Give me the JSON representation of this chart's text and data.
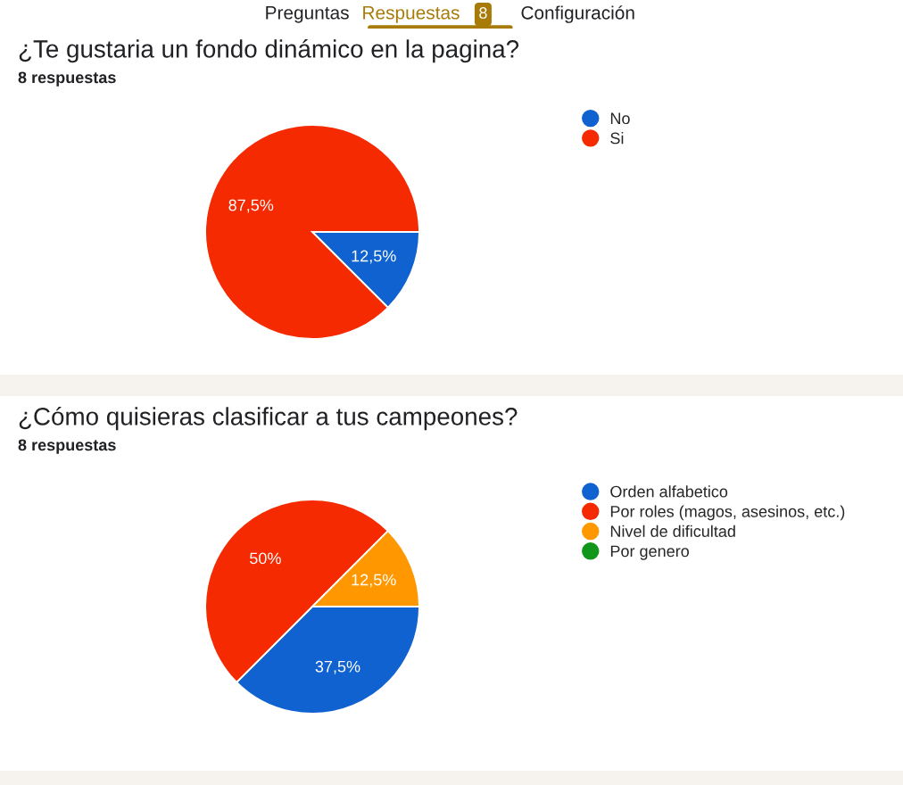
{
  "chart_data": [
    {
      "type": "pie",
      "title": "¿Te gustaria un fondo dinámico en la pagina?",
      "subtitle": "8 respuestas",
      "annotations": [
        "Preguntas",
        "Respuestas",
        "8",
        "Configuración"
      ],
      "categories": [
        "No",
        "Si"
      ],
      "values": [
        12.5,
        87.5
      ],
      "colors": [
        "#0f62cf",
        "#f52a00"
      ],
      "value_labels": [
        "12,5%",
        "87,5%"
      ],
      "legend": "right"
    },
    {
      "type": "pie",
      "title": "¿Cómo quisieras clasificar a tus campeones?",
      "subtitle": "8 respuestas",
      "categories": [
        "Orden alfabetico",
        "Por roles (magos, asesinos, etc.)",
        "Nivel de dificultad",
        "Por genero"
      ],
      "values": [
        37.5,
        50,
        12.5,
        0
      ],
      "colors": [
        "#0f62cf",
        "#f52a00",
        "#ff9800",
        "#109618"
      ],
      "value_labels": [
        "37,5%",
        "50%",
        "12,5%",
        null
      ],
      "legend": "right"
    }
  ]
}
